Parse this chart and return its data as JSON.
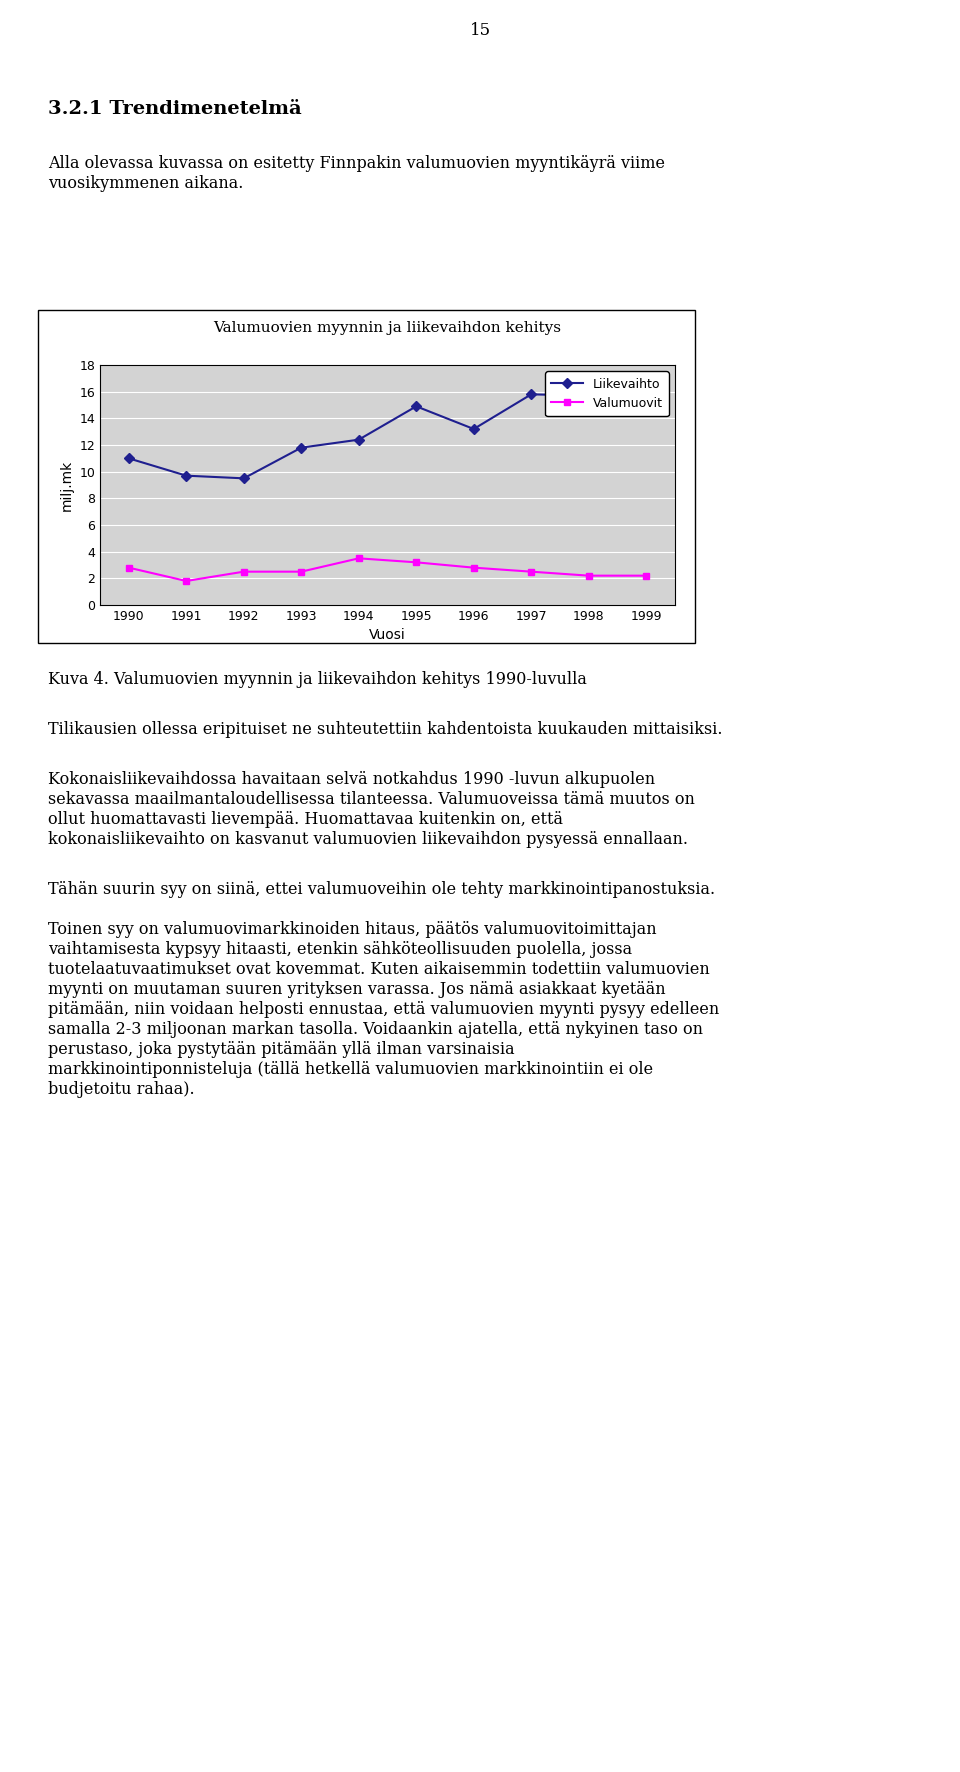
{
  "title": "Valumuovien myynnin ja liikevaihdon kehitys",
  "years": [
    1990,
    1991,
    1992,
    1993,
    1994,
    1995,
    1996,
    1997,
    1998,
    1999
  ],
  "liikevaihto": [
    11.0,
    9.7,
    9.5,
    11.8,
    12.4,
    14.9,
    13.2,
    15.8,
    15.7,
    16.2
  ],
  "valumuovit": [
    2.8,
    1.8,
    2.5,
    2.5,
    3.5,
    3.2,
    2.8,
    2.5,
    2.2,
    2.2
  ],
  "ylabel": "milj.mk",
  "xlabel": "Vuosi",
  "ylim": [
    0,
    18
  ],
  "yticks": [
    0,
    2,
    4,
    6,
    8,
    10,
    12,
    14,
    16,
    18
  ],
  "legend_liikevaihto": "Liikevaihto",
  "legend_valumuovit": "Valumuovit",
  "liikevaihto_color": "#1f1f8f",
  "valumuovit_color": "#ff00ff",
  "plot_bg": "#d3d3d3",
  "outer_bg": "#ffffff",
  "page_number": "15",
  "heading": "3.2.1 Trendimenetelmä",
  "intro_line1": "Alla olevassa kuvassa on esitetty Finnpakin valumuovien myyntikäyrä viime",
  "intro_line2": "vuosikymmenen aikana.",
  "caption": "Kuva 4. Valumuovien myynnin ja liikevaihdon kehitys 1990-luvulla",
  "para1": "Tilikausien ollessa eripituiset ne suhteutettiin kahdentoista kuukauden mittaisiksi.",
  "para2_lines": [
    "Kokonaisliikevaihdossa havaitaan selvä notkahdus 1990 -luvun alkupuolen",
    "sekavassa maailmantaloudellisessa tilanteessa. Valumuoveissa tämä muutos on",
    "ollut huomattavasti lievempää. Huomattavaa kuitenkin on, että",
    "kokonaisliikevaihto on kasvanut valumuovien liikevaihdon pysyessä ennallaan."
  ],
  "para3": "Tähän suurin syy on siinä, ettei valumuoveihin ole tehty markkinointipanostuksia.",
  "para4_lines": [
    "Toinen syy on valumuovimarkkinoiden hitaus, päätös valumuovitoimittajan",
    "vaihtamisesta kypsyy hitaasti, etenkin sähköteollisuuden puolella, jossa",
    "tuotelaatuvaatimukset ovat kovemmat. Kuten aikaisemmin todettiin valumuovien",
    "myynti on muutaman suuren yrityksen varassa. Jos nämä asiakkaat kyetään",
    "pitämään, niin voidaan helposti ennustaa, että valumuovien myynti pysyy edelleen",
    "samalla 2-3 miljoonan markan tasolla. Voidaankin ajatella, että nykyinen taso on",
    "perustaso, joka pystytään pitämään yllä ilman varsinaisia",
    "markkinointiponnisteluja (tällä hetkellä valumuovien markkinointiin ei ole",
    "budjetoitu rahaa)."
  ]
}
